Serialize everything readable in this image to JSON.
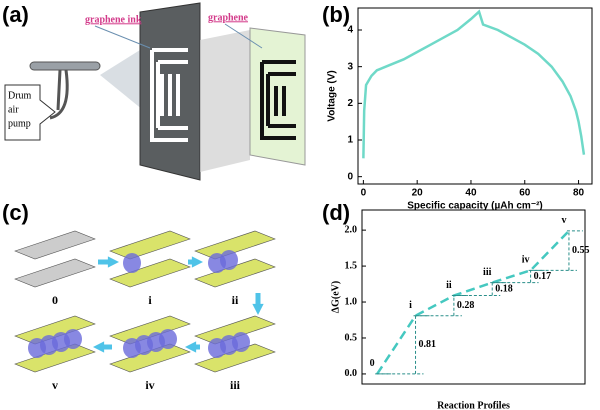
{
  "panels": {
    "a": "(a)",
    "b": "(b)",
    "c": "(c)",
    "d": "(d)"
  },
  "diagram_a": {
    "ink_label": "graphene ink",
    "film_label": "graphene",
    "pump_label": [
      "Drum",
      "air",
      "pump"
    ]
  },
  "diagram_c": {
    "stages": [
      "0",
      "i",
      "ii",
      "iii",
      "iv",
      "v"
    ]
  },
  "chart_data": [
    {
      "type": "line",
      "xlabel": "Specific capacity (µAh cm⁻²)",
      "ylabel": "Voltage (V)",
      "color": "#6fd9c8",
      "x": [
        0,
        0.3,
        1,
        3,
        5,
        10,
        15,
        20,
        25,
        30,
        35,
        40,
        43,
        44.5,
        50,
        55,
        60,
        65,
        70,
        74,
        77,
        79,
        80,
        81,
        82
      ],
      "values": [
        0.5,
        1.8,
        2.5,
        2.75,
        2.9,
        3.05,
        3.2,
        3.4,
        3.6,
        3.8,
        4.0,
        4.3,
        4.5,
        4.15,
        4.0,
        3.8,
        3.6,
        3.35,
        3.0,
        2.6,
        2.2,
        1.8,
        1.5,
        1.1,
        0.6
      ],
      "xlim": [
        -2,
        85
      ],
      "ylim": [
        -0.2,
        4.6
      ],
      "xticks": [
        0,
        20,
        40,
        60,
        80
      ],
      "yticks": [
        0,
        1,
        2,
        3,
        4
      ]
    },
    {
      "type": "step",
      "xlabel": "Reaction Profiles",
      "ylabel": "ΔG(eV)",
      "color": "#45c8c0",
      "categories": [
        "0",
        "i",
        "ii",
        "iii",
        "iv",
        "v"
      ],
      "values": [
        0,
        0.81,
        1.09,
        1.27,
        1.44,
        1.99
      ],
      "differences": [
        0.81,
        0.28,
        0.18,
        0.17,
        0.55
      ],
      "ylim": [
        -0.14,
        2.28
      ],
      "yticks": [
        {
          "value": 0,
          "label": "0.0"
        },
        {
          "value": 0.5,
          "label": "0.5"
        },
        {
          "value": 1,
          "label": "1.0"
        },
        {
          "value": 1.5,
          "label": "1.5"
        },
        {
          "value": 2,
          "label": "2.0"
        }
      ]
    }
  ]
}
